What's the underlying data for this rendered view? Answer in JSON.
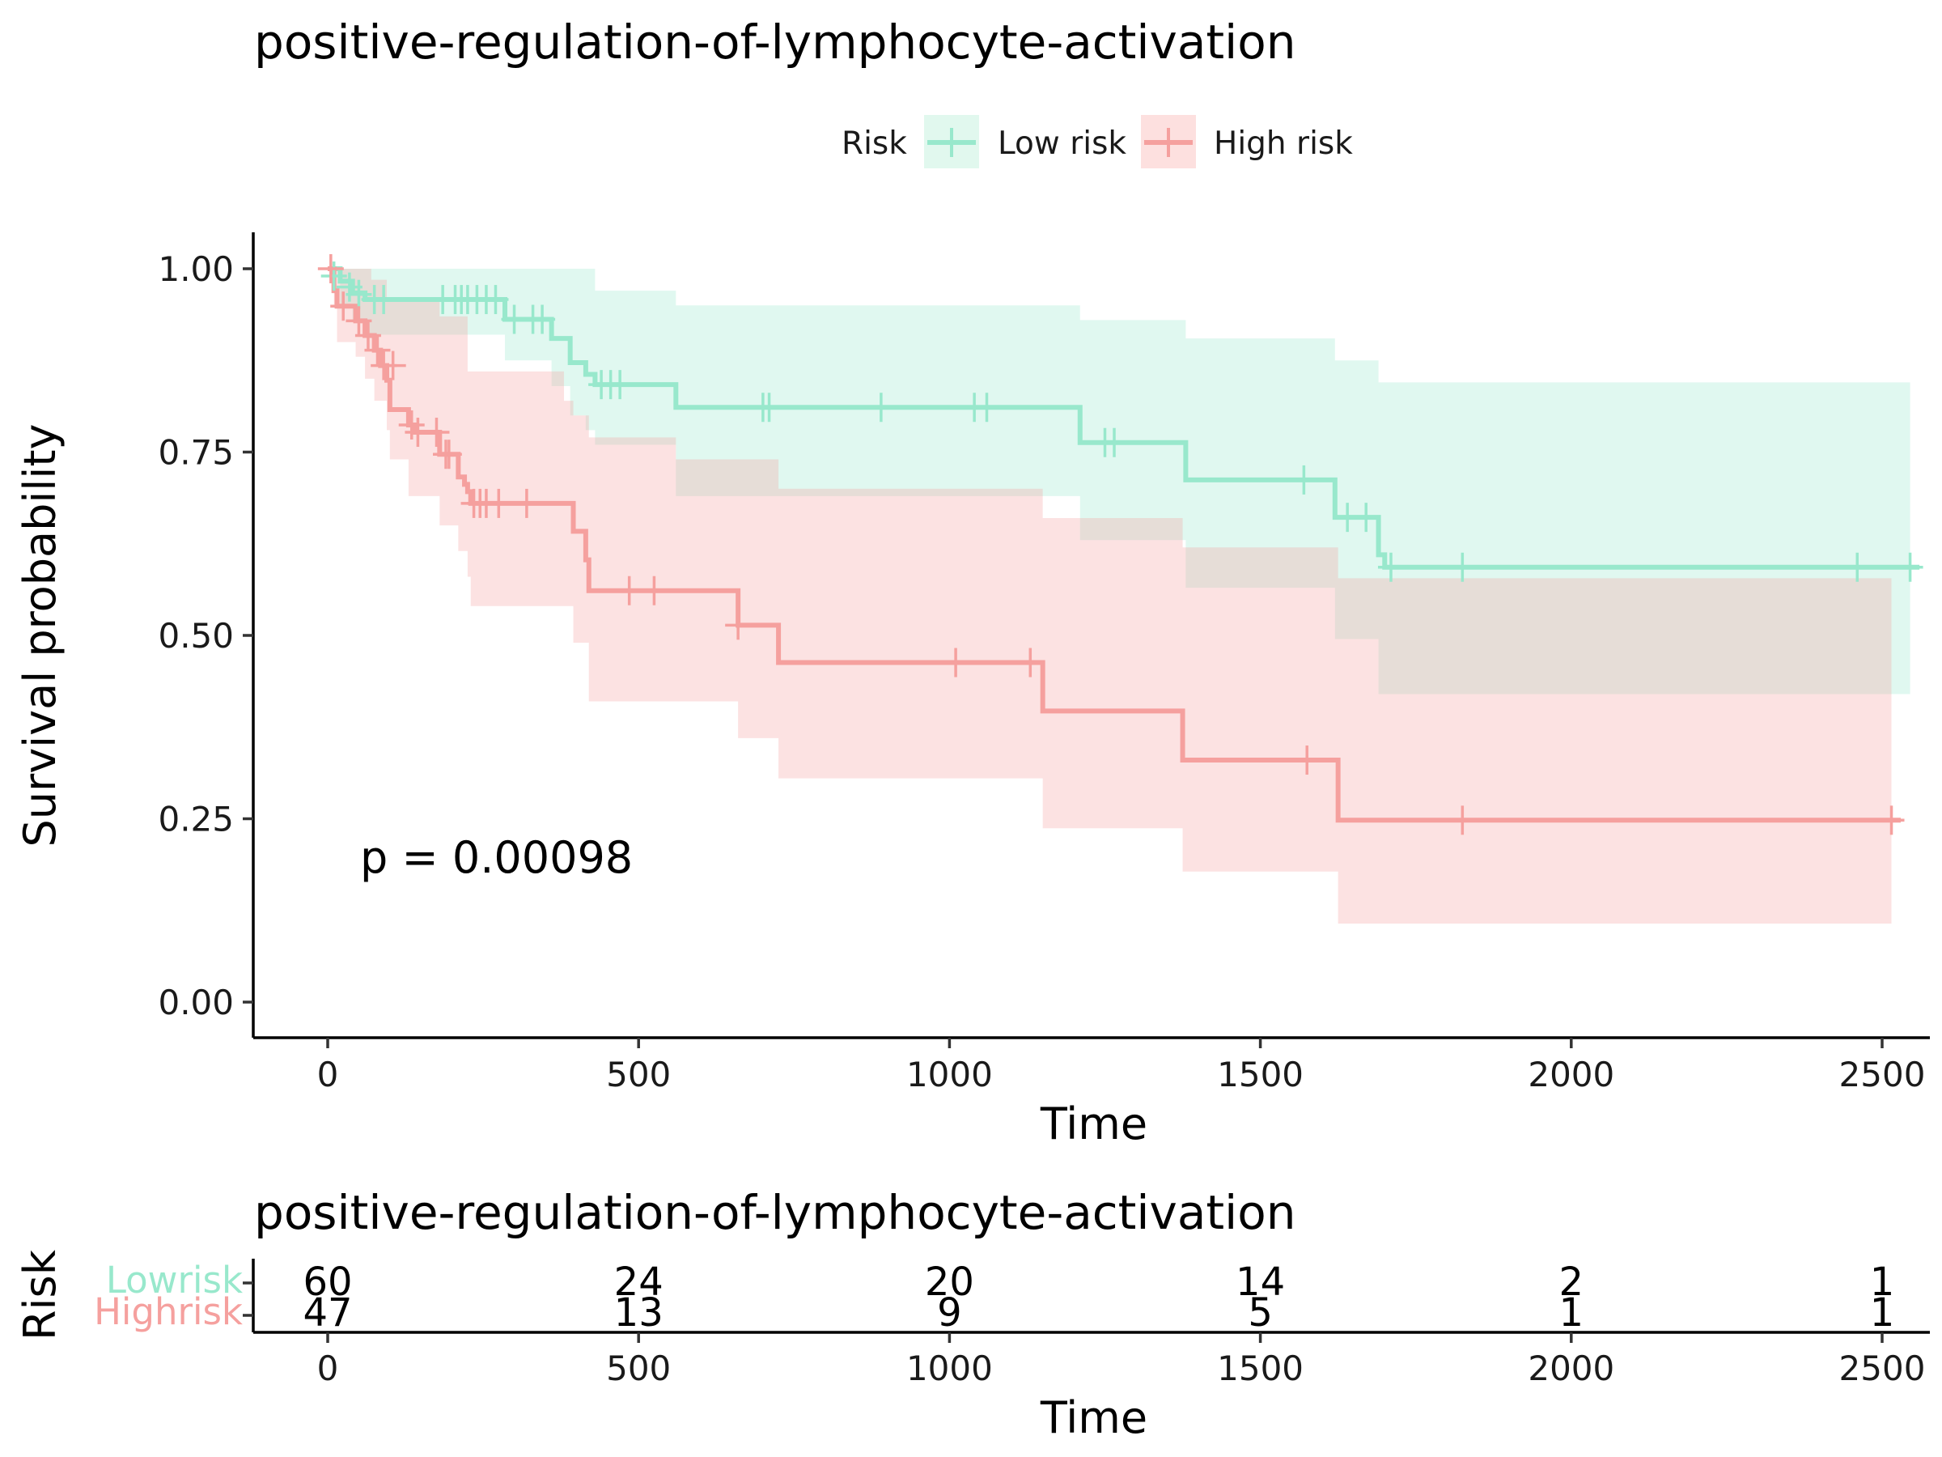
{
  "chart_data": {
    "type": "line",
    "subtype": "kaplan-meier",
    "title": "positive-regulation-of-lymphocyte-activation",
    "xlabel": "Time",
    "ylabel": "Survival probability",
    "xlim": [
      -125,
      2625
    ],
    "ylim": [
      0,
      1
    ],
    "x_ticks": [
      0,
      500,
      1000,
      1500,
      2000,
      2500
    ],
    "x_tick_labels": [
      "0",
      "500",
      "1000",
      "1500",
      "2000",
      "2500"
    ],
    "y_ticks": [
      0,
      0.25,
      0.5,
      0.75,
      1.0
    ],
    "y_tick_labels": [
      "0.00",
      "0.25",
      "0.50",
      "0.75",
      "1.00"
    ],
    "grid": false,
    "legend": {
      "title": "Risk",
      "position": "top",
      "entries": [
        "Low risk",
        "High risk"
      ]
    },
    "annotation": "p = 0.00098",
    "series": [
      {
        "name": "Low risk",
        "color": "#98E8CC",
        "band_color": "#E1F8EE",
        "steps": [
          [
            0,
            1.0
          ],
          [
            20,
            0.983
          ],
          [
            40,
            0.967
          ],
          [
            60,
            0.958
          ],
          [
            285,
            0.931
          ],
          [
            360,
            0.905
          ],
          [
            390,
            0.872
          ],
          [
            415,
            0.856
          ],
          [
            430,
            0.842
          ],
          [
            560,
            0.811
          ],
          [
            1210,
            0.763
          ],
          [
            1380,
            0.712
          ],
          [
            1620,
            0.661
          ],
          [
            1690,
            0.61
          ],
          [
            1700,
            0.593
          ],
          [
            2560,
            0.593
          ]
        ],
        "lower": [
          [
            0,
            1.0
          ],
          [
            20,
            0.95
          ],
          [
            40,
            0.93
          ],
          [
            60,
            0.91
          ],
          [
            285,
            0.875
          ],
          [
            360,
            0.84
          ],
          [
            390,
            0.8
          ],
          [
            415,
            0.78
          ],
          [
            430,
            0.76
          ],
          [
            560,
            0.69
          ],
          [
            1210,
            0.63
          ],
          [
            1380,
            0.565
          ],
          [
            1620,
            0.495
          ],
          [
            1690,
            0.42
          ],
          [
            2545,
            0.42
          ]
        ],
        "upper": [
          [
            0,
            1.0
          ],
          [
            410,
            1.0
          ],
          [
            430,
            0.97
          ],
          [
            560,
            0.95
          ],
          [
            1210,
            0.93
          ],
          [
            1380,
            0.905
          ],
          [
            1620,
            0.875
          ],
          [
            1690,
            0.845
          ],
          [
            2545,
            0.845
          ]
        ],
        "censors": [
          [
            10,
            0.99
          ],
          [
            35,
            0.975
          ],
          [
            50,
            0.965
          ],
          [
            75,
            0.958
          ],
          [
            90,
            0.958
          ],
          [
            185,
            0.958
          ],
          [
            205,
            0.958
          ],
          [
            215,
            0.958
          ],
          [
            225,
            0.958
          ],
          [
            240,
            0.958
          ],
          [
            255,
            0.958
          ],
          [
            270,
            0.958
          ],
          [
            300,
            0.931
          ],
          [
            330,
            0.931
          ],
          [
            345,
            0.931
          ],
          [
            440,
            0.842
          ],
          [
            455,
            0.842
          ],
          [
            470,
            0.842
          ],
          [
            700,
            0.811
          ],
          [
            710,
            0.811
          ],
          [
            890,
            0.811
          ],
          [
            1040,
            0.811
          ],
          [
            1060,
            0.811
          ],
          [
            1250,
            0.763
          ],
          [
            1265,
            0.763
          ],
          [
            1570,
            0.712
          ],
          [
            1640,
            0.661
          ],
          [
            1670,
            0.661
          ],
          [
            1710,
            0.593
          ],
          [
            1825,
            0.593
          ],
          [
            2460,
            0.593
          ],
          [
            2545,
            0.593
          ]
        ]
      },
      {
        "name": "High risk",
        "color": "#F5A09E",
        "band_color": "#FDE0DF",
        "steps": [
          [
            0,
            1.0
          ],
          [
            10,
            0.97
          ],
          [
            15,
            0.949
          ],
          [
            45,
            0.929
          ],
          [
            60,
            0.909
          ],
          [
            75,
            0.889
          ],
          [
            85,
            0.868
          ],
          [
            95,
            0.848
          ],
          [
            100,
            0.808
          ],
          [
            130,
            0.787
          ],
          [
            140,
            0.777
          ],
          [
            180,
            0.747
          ],
          [
            210,
            0.716
          ],
          [
            220,
            0.706
          ],
          [
            225,
            0.696
          ],
          [
            230,
            0.68
          ],
          [
            395,
            0.642
          ],
          [
            415,
            0.603
          ],
          [
            420,
            0.561
          ],
          [
            660,
            0.514
          ],
          [
            725,
            0.463
          ],
          [
            1150,
            0.397
          ],
          [
            1375,
            0.33
          ],
          [
            1625,
            0.248
          ],
          [
            2530,
            0.248
          ]
        ],
        "lower": [
          [
            0,
            1.0
          ],
          [
            10,
            0.95
          ],
          [
            15,
            0.9
          ],
          [
            45,
            0.88
          ],
          [
            60,
            0.85
          ],
          [
            75,
            0.82
          ],
          [
            95,
            0.78
          ],
          [
            100,
            0.74
          ],
          [
            130,
            0.69
          ],
          [
            180,
            0.65
          ],
          [
            210,
            0.615
          ],
          [
            225,
            0.58
          ],
          [
            230,
            0.54
          ],
          [
            395,
            0.49
          ],
          [
            420,
            0.41
          ],
          [
            660,
            0.36
          ],
          [
            725,
            0.305
          ],
          [
            1150,
            0.237
          ],
          [
            1375,
            0.178
          ],
          [
            1625,
            0.107
          ],
          [
            2515,
            0.107
          ]
        ],
        "upper": [
          [
            0,
            1.0
          ],
          [
            40,
            1.0
          ],
          [
            70,
            0.985
          ],
          [
            95,
            0.955
          ],
          [
            180,
            0.935
          ],
          [
            225,
            0.86
          ],
          [
            380,
            0.82
          ],
          [
            395,
            0.8
          ],
          [
            420,
            0.77
          ],
          [
            560,
            0.74
          ],
          [
            725,
            0.7
          ],
          [
            1150,
            0.66
          ],
          [
            1375,
            0.62
          ],
          [
            1625,
            0.578
          ],
          [
            2515,
            0.578
          ]
        ],
        "censors": [
          [
            5,
            1.0
          ],
          [
            25,
            0.949
          ],
          [
            50,
            0.929
          ],
          [
            65,
            0.909
          ],
          [
            80,
            0.889
          ],
          [
            90,
            0.868
          ],
          [
            105,
            0.868
          ],
          [
            135,
            0.787
          ],
          [
            145,
            0.777
          ],
          [
            175,
            0.777
          ],
          [
            190,
            0.747
          ],
          [
            195,
            0.747
          ],
          [
            235,
            0.68
          ],
          [
            245,
            0.68
          ],
          [
            255,
            0.68
          ],
          [
            275,
            0.68
          ],
          [
            320,
            0.68
          ],
          [
            485,
            0.561
          ],
          [
            525,
            0.561
          ],
          [
            660,
            0.514
          ],
          [
            1010,
            0.463
          ],
          [
            1130,
            0.463
          ],
          [
            1575,
            0.33
          ],
          [
            1825,
            0.248
          ],
          [
            2515,
            0.248
          ]
        ]
      }
    ]
  },
  "risk_table": {
    "title": "positive-regulation-of-lymphocyte-activation",
    "ylabel": "Risk",
    "xlabel": "Time",
    "times": [
      0,
      500,
      1000,
      1500,
      2000,
      2500
    ],
    "time_labels": [
      "0",
      "500",
      "1000",
      "1500",
      "2000",
      "2500"
    ],
    "rows": [
      {
        "label": "Lowrisk",
        "color": "#98E8CC",
        "counts": [
          "60",
          "24",
          "20",
          "14",
          "2",
          "1"
        ]
      },
      {
        "label": "Highrisk",
        "color": "#F5A09E",
        "counts": [
          "47",
          "13",
          "9",
          "5",
          "1",
          "1"
        ]
      }
    ]
  }
}
